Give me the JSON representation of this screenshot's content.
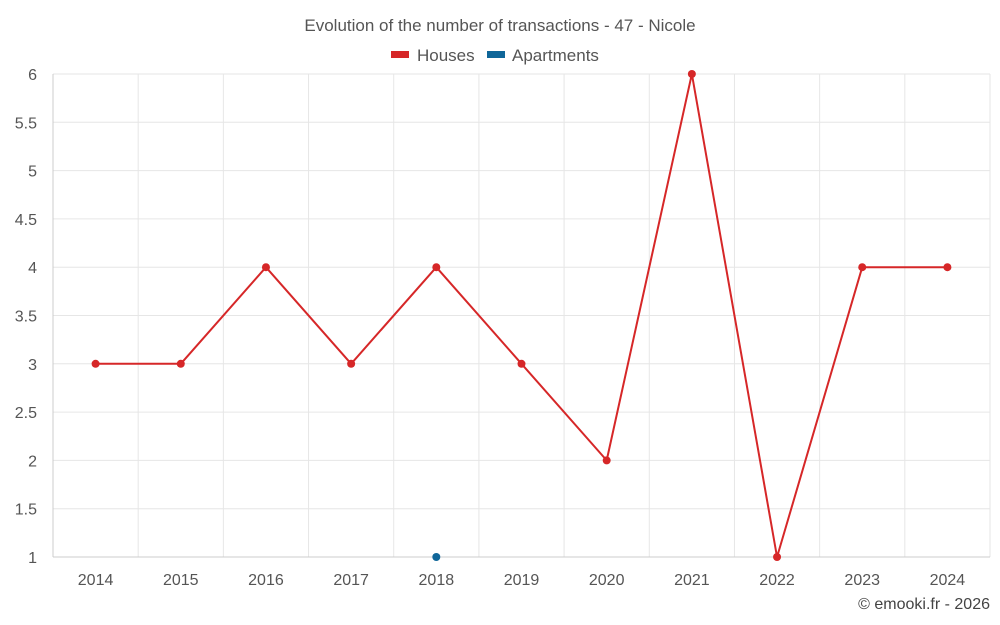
{
  "chart_data": {
    "type": "line",
    "title": "Evolution of the number of transactions - 47 - Nicole",
    "categories": [
      "2014",
      "2015",
      "2016",
      "2017",
      "2018",
      "2019",
      "2020",
      "2021",
      "2022",
      "2023",
      "2024"
    ],
    "series": [
      {
        "name": "Houses",
        "color": "#d62728",
        "values": [
          3,
          3,
          4,
          3,
          4,
          3,
          2,
          6,
          1,
          4,
          4
        ]
      },
      {
        "name": "Apartments",
        "color": "#0f6699",
        "values": [
          null,
          null,
          null,
          null,
          1,
          null,
          null,
          null,
          null,
          null,
          null
        ]
      }
    ],
    "yticks": [
      "1",
      "1.5",
      "2",
      "2.5",
      "3",
      "3.5",
      "4",
      "4.5",
      "5",
      "5.5",
      "6"
    ],
    "ylim": [
      1,
      6
    ],
    "xlabel": "",
    "ylabel": "",
    "grid": true,
    "legend_position": "top-center"
  },
  "credit": "© emooki.fr - 2026"
}
